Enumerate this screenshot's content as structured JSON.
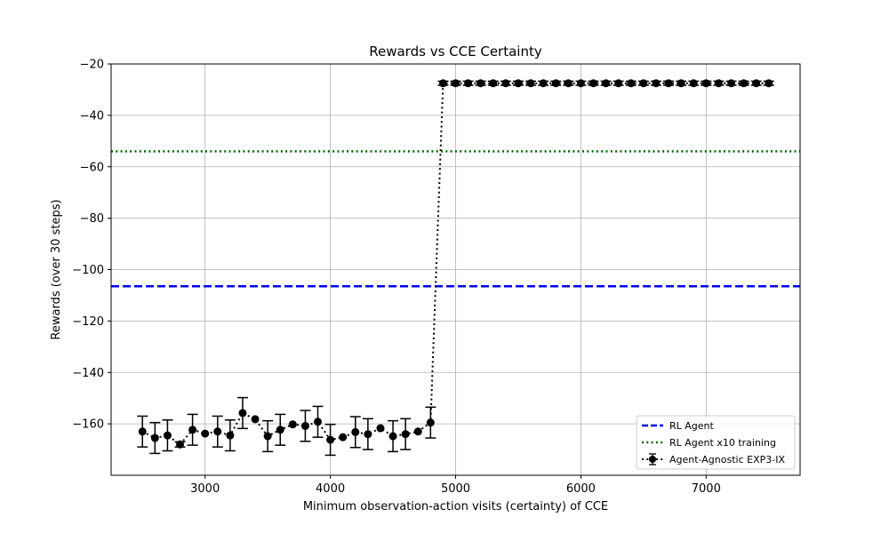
{
  "chart_data": {
    "type": "line",
    "title": "Rewards vs CCE Certainty",
    "xlabel": "Minimum observation-action visits (certainty) of CCE",
    "ylabel": "Rewards (over 30 steps)",
    "xlim": [
      2250,
      7750
    ],
    "ylim": [
      -180,
      -20
    ],
    "xticks": [
      3000,
      4000,
      5000,
      6000,
      7000
    ],
    "yticks": [
      -160,
      -140,
      -120,
      -100,
      -80,
      -60,
      -40,
      -20
    ],
    "grid": true,
    "legend_position": "lower-right",
    "hlines": [
      {
        "name": "RL Agent",
        "y": -106.5,
        "color": "#0000ee",
        "style": "dashed"
      },
      {
        "name": "RL Agent x10 training",
        "y": -54,
        "color": "#006400",
        "style": "dotted"
      }
    ],
    "series": [
      {
        "name": "Agent-Agnostic EXP3-IX",
        "color": "#000000",
        "style": "dotted",
        "marker": "circle",
        "x": [
          2500,
          2600,
          2700,
          2800,
          2900,
          3000,
          3100,
          3200,
          3300,
          3400,
          3500,
          3600,
          3700,
          3800,
          3900,
          4000,
          4100,
          4200,
          4300,
          4400,
          4500,
          4600,
          4700,
          4800,
          4900,
          5000,
          5100,
          5200,
          5300,
          5400,
          5500,
          5600,
          5700,
          5800,
          5900,
          6000,
          6100,
          6200,
          6300,
          6400,
          6500,
          6600,
          6700,
          6800,
          6900,
          7000,
          7100,
          7200,
          7300,
          7400,
          7500
        ],
        "y": [
          -163,
          -165.5,
          -164.5,
          -168,
          -162.3,
          -163.8,
          -163,
          -164.5,
          -155.8,
          -158.2,
          -164.8,
          -162.3,
          -160.2,
          -160.8,
          -159.2,
          -166.2,
          -165.2,
          -163.2,
          -164,
          -161.7,
          -164.8,
          -164,
          -163,
          -159.5,
          -27.5,
          -27.5,
          -27.5,
          -27.5,
          -27.5,
          -27.5,
          -27.5,
          -27.5,
          -27.5,
          -27.5,
          -27.5,
          -27.5,
          -27.5,
          -27.5,
          -27.5,
          -27.5,
          -27.5,
          -27.5,
          -27.5,
          -27.5,
          -27.5,
          -27.5,
          -27.5,
          -27.5,
          -27.5,
          -27.5,
          -27.5
        ],
        "yerr": [
          6,
          6,
          6,
          1,
          6,
          0,
          6,
          6,
          6,
          0,
          6,
          6,
          0,
          6,
          6,
          6,
          0,
          6,
          6,
          0,
          6,
          6,
          0,
          6,
          0.8,
          0.8,
          0.8,
          0.8,
          0.8,
          0.8,
          0.8,
          0.8,
          0.8,
          0.8,
          0.8,
          0.8,
          0.8,
          0.8,
          0.8,
          0.8,
          0.8,
          0.8,
          0.8,
          0.8,
          0.8,
          0.8,
          0.8,
          0.8,
          0.8,
          0.8,
          0.8
        ]
      }
    ]
  }
}
